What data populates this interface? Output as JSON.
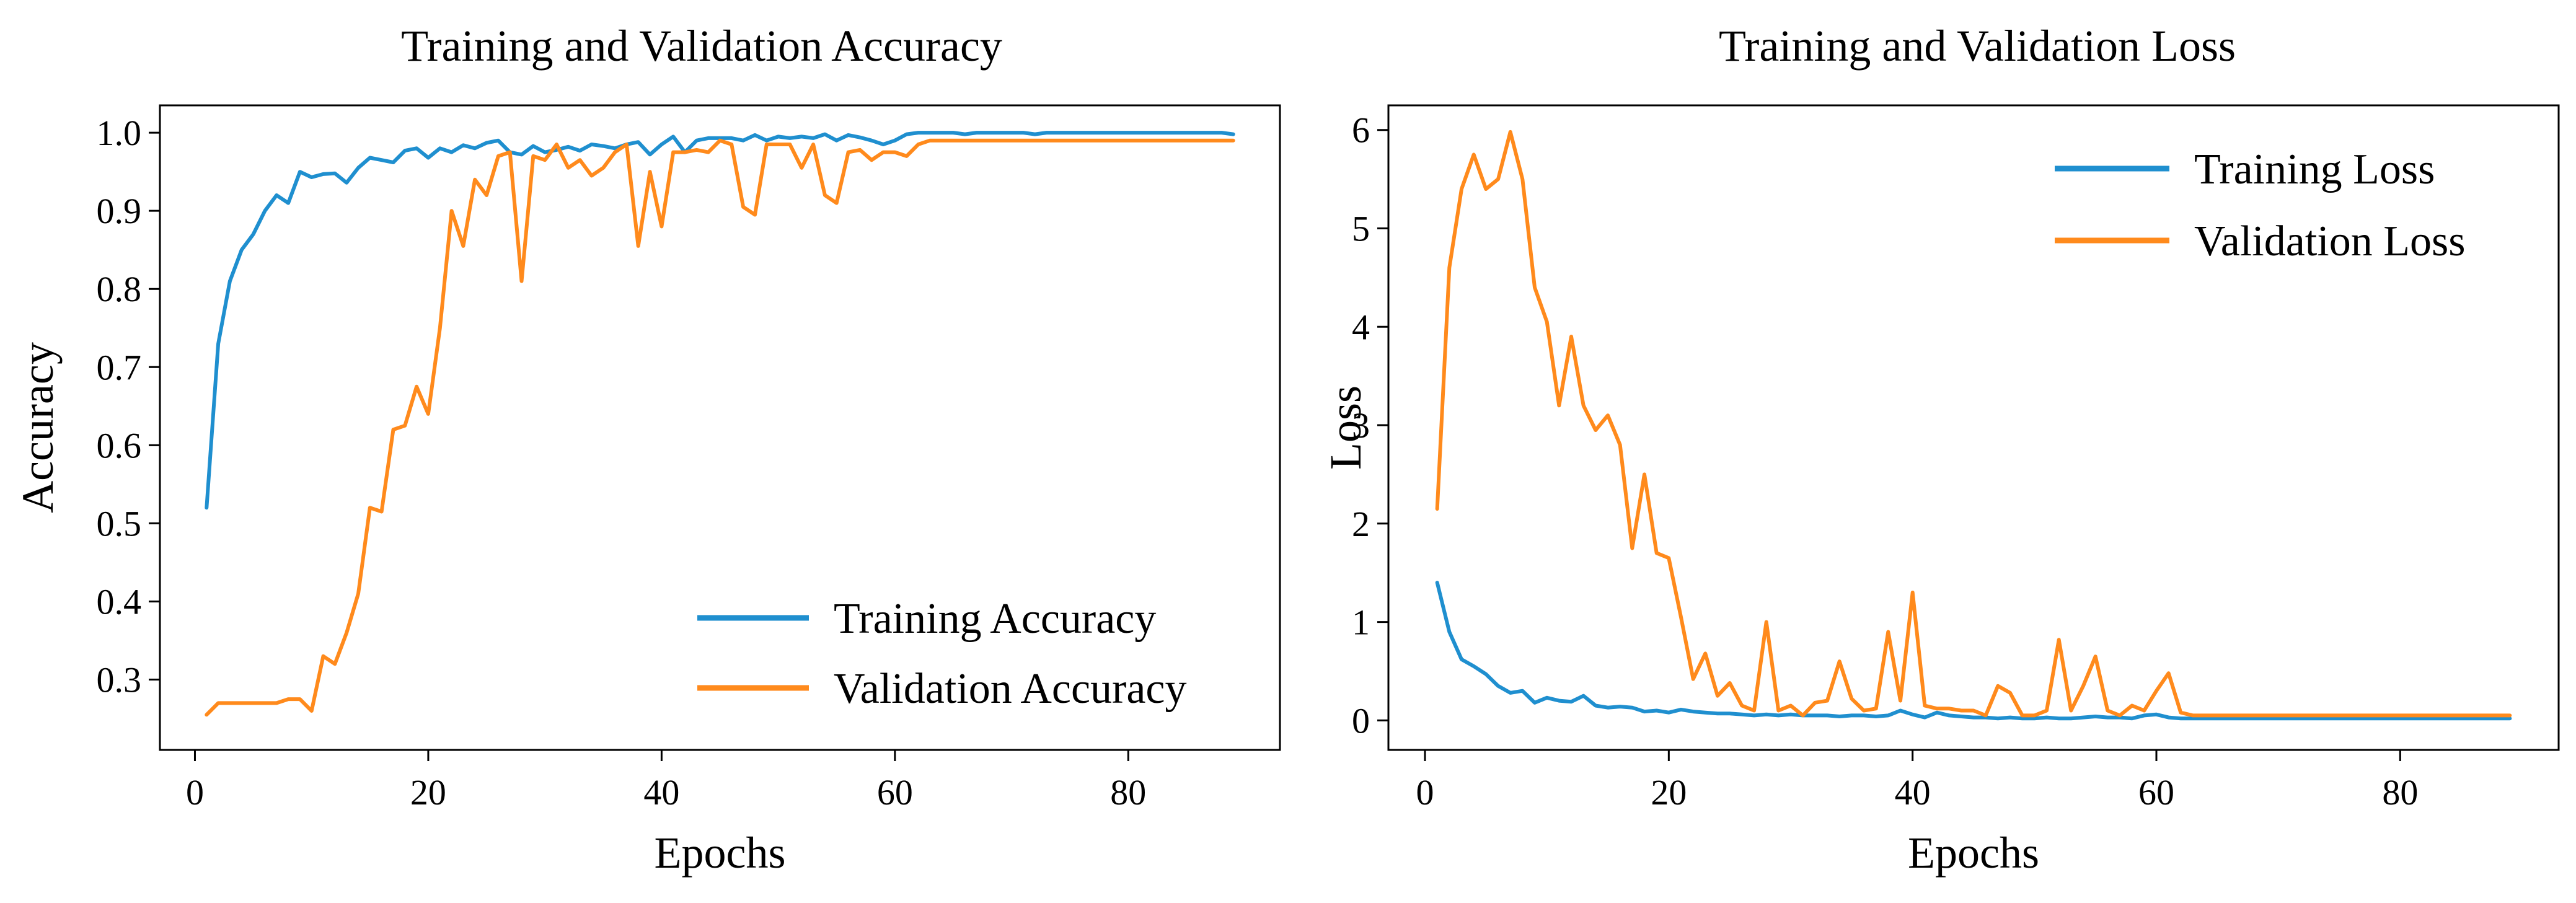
{
  "colors": {
    "training": "#1f8fcf",
    "validation": "#ff8a1c",
    "axis": "#000000"
  },
  "chart_data": [
    {
      "type": "line",
      "title": "Training and Validation Accuracy",
      "xlabel": "Epochs",
      "ylabel": "Accuracy",
      "xlim": [
        -3,
        93
      ],
      "ylim": [
        0.21,
        1.035
      ],
      "xticks": [
        0,
        20,
        40,
        60,
        80
      ],
      "xtick_labels": [
        "0",
        "20",
        "40",
        "60",
        "80"
      ],
      "yticks": [
        0.3,
        0.4,
        0.5,
        0.6,
        0.7,
        0.8,
        0.9,
        1.0
      ],
      "ytick_labels": [
        "0.3",
        "0.4",
        "0.5",
        "0.6",
        "0.7",
        "0.8",
        "0.9",
        "1.0"
      ],
      "legend_position": "lower-right",
      "series": [
        {
          "name": "Training Accuracy",
          "color_key": "training",
          "x": [
            1,
            2,
            3,
            4,
            5,
            6,
            7,
            8,
            9,
            10,
            11,
            12,
            13,
            14,
            15,
            16,
            17,
            18,
            19,
            20,
            21,
            22,
            23,
            24,
            25,
            26,
            27,
            28,
            29,
            30,
            31,
            32,
            33,
            34,
            35,
            36,
            37,
            38,
            39,
            40,
            41,
            42,
            43,
            44,
            45,
            46,
            47,
            48,
            49,
            50,
            51,
            52,
            53,
            54,
            55,
            56,
            57,
            58,
            59,
            60,
            61,
            62,
            63,
            64,
            65,
            66,
            67,
            68,
            69,
            70,
            71,
            72,
            73,
            74,
            75,
            76,
            77,
            78,
            79,
            80,
            81,
            82,
            83,
            84,
            85,
            86,
            87,
            88,
            89
          ],
          "y": [
            0.52,
            0.73,
            0.81,
            0.85,
            0.87,
            0.9,
            0.92,
            0.91,
            0.95,
            0.943,
            0.947,
            0.948,
            0.936,
            0.955,
            0.968,
            0.965,
            0.962,
            0.977,
            0.98,
            0.968,
            0.98,
            0.975,
            0.984,
            0.98,
            0.987,
            0.99,
            0.975,
            0.972,
            0.983,
            0.975,
            0.978,
            0.982,
            0.977,
            0.985,
            0.983,
            0.98,
            0.985,
            0.988,
            0.972,
            0.985,
            0.995,
            0.975,
            0.99,
            0.993,
            0.993,
            0.993,
            0.99,
            0.997,
            0.99,
            0.995,
            0.993,
            0.995,
            0.993,
            0.998,
            0.99,
            0.997,
            0.994,
            0.99,
            0.985,
            0.99,
            0.998,
            1.0,
            1.0,
            1.0,
            1.0,
            0.998,
            1.0,
            1.0,
            1.0,
            1.0,
            1.0,
            0.998,
            1.0,
            1.0,
            1.0,
            1.0,
            1.0,
            1.0,
            1.0,
            1.0,
            1.0,
            1.0,
            1.0,
            1.0,
            1.0,
            1.0,
            1.0,
            1.0,
            0.998
          ]
        },
        {
          "name": "Validation Accuracy",
          "color_key": "validation",
          "x": [
            1,
            2,
            3,
            4,
            5,
            6,
            7,
            8,
            9,
            10,
            11,
            12,
            13,
            14,
            15,
            16,
            17,
            18,
            19,
            20,
            21,
            22,
            23,
            24,
            25,
            26,
            27,
            28,
            29,
            30,
            31,
            32,
            33,
            34,
            35,
            36,
            37,
            38,
            39,
            40,
            41,
            42,
            43,
            44,
            45,
            46,
            47,
            48,
            49,
            50,
            51,
            52,
            53,
            54,
            55,
            56,
            57,
            58,
            59,
            60,
            61,
            62,
            63,
            64,
            65,
            66,
            67,
            68,
            69,
            70,
            71,
            72,
            73,
            74,
            75,
            76,
            77,
            78,
            79,
            80,
            81,
            82,
            83,
            84,
            85,
            86,
            87,
            88,
            89
          ],
          "y": [
            0.255,
            0.27,
            0.27,
            0.27,
            0.27,
            0.27,
            0.27,
            0.275,
            0.275,
            0.26,
            0.33,
            0.32,
            0.36,
            0.41,
            0.52,
            0.515,
            0.62,
            0.625,
            0.675,
            0.64,
            0.75,
            0.9,
            0.855,
            0.94,
            0.92,
            0.97,
            0.975,
            0.81,
            0.97,
            0.965,
            0.985,
            0.955,
            0.965,
            0.945,
            0.955,
            0.975,
            0.985,
            0.855,
            0.95,
            0.88,
            0.975,
            0.975,
            0.978,
            0.975,
            0.99,
            0.985,
            0.905,
            0.895,
            0.985,
            0.985,
            0.985,
            0.955,
            0.985,
            0.92,
            0.91,
            0.975,
            0.978,
            0.965,
            0.975,
            0.975,
            0.97,
            0.985,
            0.99,
            0.99,
            0.99,
            0.99,
            0.99,
            0.99,
            0.99,
            0.99,
            0.99,
            0.99,
            0.99,
            0.99,
            0.99,
            0.99,
            0.99,
            0.99,
            0.99,
            0.99,
            0.99,
            0.99,
            0.99,
            0.99,
            0.99,
            0.99,
            0.99,
            0.99,
            0.99
          ]
        }
      ]
    },
    {
      "type": "line",
      "title": "Training and Validation Loss",
      "xlabel": "Epochs",
      "ylabel": "Loss",
      "xlim": [
        -3,
        93
      ],
      "ylim": [
        -0.3,
        6.25
      ],
      "xticks": [
        0,
        20,
        40,
        60,
        80
      ],
      "xtick_labels": [
        "0",
        "20",
        "40",
        "60",
        "80"
      ],
      "yticks": [
        0,
        1,
        2,
        3,
        4,
        5,
        6
      ],
      "ytick_labels": [
        "0",
        "1",
        "2",
        "3",
        "4",
        "5",
        "6"
      ],
      "legend_position": "upper-right",
      "series": [
        {
          "name": "Training Loss",
          "color_key": "training",
          "x": [
            1,
            2,
            3,
            4,
            5,
            6,
            7,
            8,
            9,
            10,
            11,
            12,
            13,
            14,
            15,
            16,
            17,
            18,
            19,
            20,
            21,
            22,
            23,
            24,
            25,
            26,
            27,
            28,
            29,
            30,
            31,
            32,
            33,
            34,
            35,
            36,
            37,
            38,
            39,
            40,
            41,
            42,
            43,
            44,
            45,
            46,
            47,
            48,
            49,
            50,
            51,
            52,
            53,
            54,
            55,
            56,
            57,
            58,
            59,
            60,
            61,
            62,
            63,
            64,
            65,
            66,
            67,
            68,
            69,
            70,
            71,
            72,
            73,
            74,
            75,
            76,
            77,
            78,
            79,
            80,
            81,
            82,
            83,
            84,
            85,
            86,
            87,
            88,
            89
          ],
          "y": [
            1.4,
            0.9,
            0.62,
            0.55,
            0.47,
            0.35,
            0.28,
            0.3,
            0.18,
            0.23,
            0.2,
            0.19,
            0.25,
            0.15,
            0.13,
            0.14,
            0.13,
            0.09,
            0.1,
            0.08,
            0.11,
            0.09,
            0.08,
            0.07,
            0.07,
            0.06,
            0.05,
            0.06,
            0.05,
            0.06,
            0.05,
            0.05,
            0.05,
            0.04,
            0.05,
            0.05,
            0.04,
            0.05,
            0.1,
            0.06,
            0.03,
            0.08,
            0.05,
            0.04,
            0.03,
            0.03,
            0.02,
            0.03,
            0.02,
            0.02,
            0.03,
            0.02,
            0.02,
            0.03,
            0.04,
            0.03,
            0.03,
            0.02,
            0.05,
            0.06,
            0.03,
            0.02,
            0.02,
            0.02,
            0.02,
            0.02,
            0.02,
            0.02,
            0.02,
            0.02,
            0.02,
            0.02,
            0.02,
            0.02,
            0.02,
            0.02,
            0.02,
            0.02,
            0.02,
            0.02,
            0.02,
            0.02,
            0.02,
            0.02,
            0.02,
            0.02,
            0.02,
            0.02,
            0.02
          ]
        },
        {
          "name": "Validation Loss",
          "color_key": "validation",
          "x": [
            1,
            2,
            3,
            4,
            5,
            6,
            7,
            8,
            9,
            10,
            11,
            12,
            13,
            14,
            15,
            16,
            17,
            18,
            19,
            20,
            21,
            22,
            23,
            24,
            25,
            26,
            27,
            28,
            29,
            30,
            31,
            32,
            33,
            34,
            35,
            36,
            37,
            38,
            39,
            40,
            41,
            42,
            43,
            44,
            45,
            46,
            47,
            48,
            49,
            50,
            51,
            52,
            53,
            54,
            55,
            56,
            57,
            58,
            59,
            60,
            61,
            62,
            63,
            64,
            65,
            66,
            67,
            68,
            69,
            70,
            71,
            72,
            73,
            74,
            75,
            76,
            77,
            78,
            79,
            80,
            81,
            82,
            83,
            84,
            85,
            86,
            87,
            88,
            89
          ],
          "y": [
            2.15,
            4.6,
            5.4,
            5.75,
            5.4,
            5.5,
            5.98,
            5.5,
            4.4,
            4.05,
            3.2,
            3.9,
            3.2,
            2.95,
            3.1,
            2.8,
            1.75,
            2.5,
            1.7,
            1.65,
            1.05,
            0.42,
            0.68,
            0.25,
            0.38,
            0.15,
            0.1,
            1.0,
            0.1,
            0.15,
            0.05,
            0.18,
            0.2,
            0.6,
            0.22,
            0.1,
            0.12,
            0.9,
            0.2,
            1.3,
            0.15,
            0.12,
            0.12,
            0.1,
            0.1,
            0.05,
            0.35,
            0.28,
            0.05,
            0.05,
            0.1,
            0.82,
            0.1,
            0.35,
            0.65,
            0.1,
            0.05,
            0.15,
            0.1,
            0.3,
            0.48,
            0.08,
            0.05,
            0.05,
            0.05,
            0.05,
            0.05,
            0.05,
            0.05,
            0.05,
            0.05,
            0.05,
            0.05,
            0.05,
            0.05,
            0.05,
            0.05,
            0.05,
            0.05,
            0.05,
            0.05,
            0.05,
            0.05,
            0.05,
            0.05,
            0.05,
            0.05,
            0.05,
            0.05
          ]
        }
      ]
    }
  ]
}
